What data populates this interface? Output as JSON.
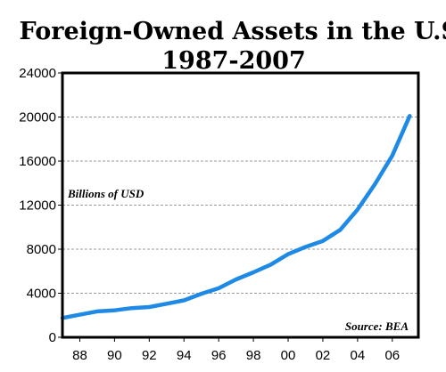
{
  "chart_data": {
    "type": "line",
    "title": "Foreign-Owned Assets in the U.S.",
    "subtitle": "1987-2007",
    "ylabel": "Billions of USD",
    "source": "Source: BEA",
    "ylim": [
      0,
      24000
    ],
    "xlim": [
      1987,
      2007.5
    ],
    "yticks": [
      0,
      4000,
      8000,
      12000,
      16000,
      20000,
      24000
    ],
    "ytick_labels": [
      "0",
      "4000",
      "8000",
      "12000",
      "16000",
      "20000",
      "24000"
    ],
    "xticks": [
      1988,
      1990,
      1992,
      1994,
      1996,
      1998,
      2000,
      2002,
      2004,
      2006
    ],
    "xtick_labels": [
      "88",
      "90",
      "92",
      "94",
      "96",
      "98",
      "00",
      "02",
      "04",
      "06"
    ],
    "grid": true,
    "series": [
      {
        "color": "#1e8ae6",
        "x": [
          1987,
          1988,
          1989,
          1990,
          1991,
          1992,
          1993,
          1994,
          1995,
          1996,
          1997,
          1998,
          1999,
          2000,
          2001,
          2002,
          2003,
          2004,
          2005,
          2006,
          2007
        ],
        "values": [
          1750,
          2050,
          2350,
          2450,
          2650,
          2750,
          3050,
          3350,
          3950,
          4450,
          5250,
          5900,
          6600,
          7550,
          8200,
          8750,
          9750,
          11600,
          13900,
          16500,
          20100
        ]
      }
    ]
  }
}
